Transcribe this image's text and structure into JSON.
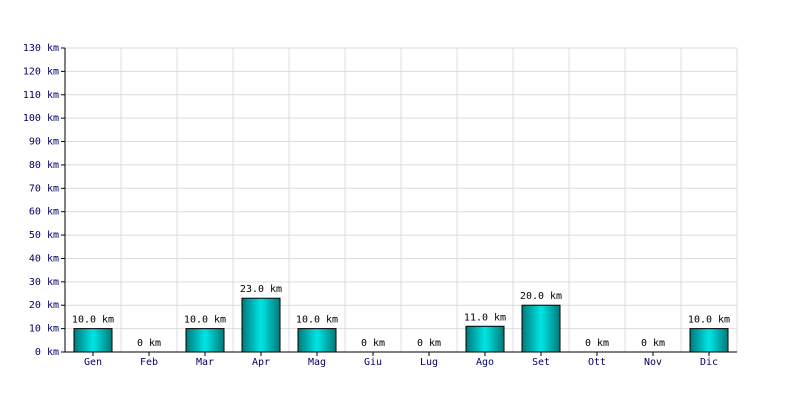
{
  "chart_data": {
    "type": "bar",
    "categories": [
      "Gen",
      "Feb",
      "Mar",
      "Apr",
      "Mag",
      "Giu",
      "Lug",
      "Ago",
      "Set",
      "Ott",
      "Nov",
      "Dic"
    ],
    "values": [
      10,
      0,
      10,
      23,
      10,
      0,
      0,
      11,
      20,
      0,
      0,
      10
    ],
    "value_labels": [
      "10.0 km",
      "0 km",
      "10.0 km",
      "23.0 km",
      "10.0 km",
      "0 km",
      "0 km",
      "11.0 km",
      "20.0 km",
      "0 km",
      "0 km",
      "10.0 km"
    ],
    "color": "#00e5e5",
    "ylim": [
      0,
      130
    ],
    "yticks": [
      {
        "value": 0,
        "label": "0 km"
      },
      {
        "value": 10,
        "label": "10 km"
      },
      {
        "value": 20,
        "label": "20 km"
      },
      {
        "value": 30,
        "label": "30 km"
      },
      {
        "value": 40,
        "label": "40 km"
      },
      {
        "value": 50,
        "label": "50 km"
      },
      {
        "value": 60,
        "label": "60 km"
      },
      {
        "value": 70,
        "label": "70 km"
      },
      {
        "value": 80,
        "label": "80 km"
      },
      {
        "value": 90,
        "label": "90 km"
      },
      {
        "value": 100,
        "label": "100 km"
      },
      {
        "value": 110,
        "label": "110 km"
      },
      {
        "value": 120,
        "label": "120 km"
      },
      {
        "value": 130,
        "label": "130 km"
      }
    ],
    "grid": true
  }
}
